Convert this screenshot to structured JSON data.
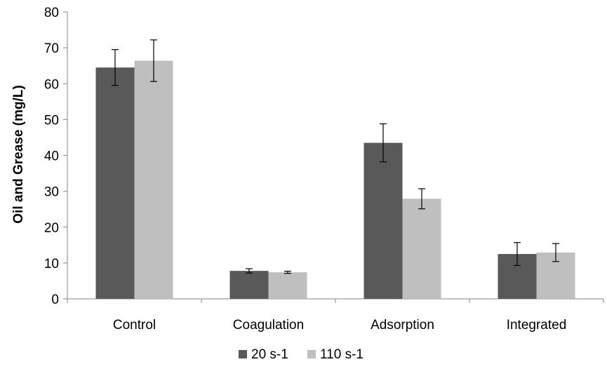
{
  "chart_data": {
    "type": "bar",
    "title": "",
    "xlabel": "",
    "ylabel": "Oil and Grease (mg/L)",
    "ylim": [
      0,
      80
    ],
    "yticks": [
      0,
      10,
      20,
      30,
      40,
      50,
      60,
      70,
      80
    ],
    "categories": [
      "Control",
      "Coagulation",
      "Adsorption",
      "Integrated"
    ],
    "series": [
      {
        "name": "20 s-1",
        "color": "#595959",
        "values": [
          64.5,
          7.8,
          43.5,
          12.5
        ],
        "errors": [
          5.0,
          0.6,
          5.3,
          3.2
        ]
      },
      {
        "name": "110 s-1",
        "color": "#bfbfbf",
        "values": [
          66.4,
          7.4,
          27.9,
          12.9
        ],
        "errors": [
          5.8,
          0.3,
          2.8,
          2.5
        ]
      }
    ],
    "grid": false,
    "legend_position": "bottom"
  }
}
